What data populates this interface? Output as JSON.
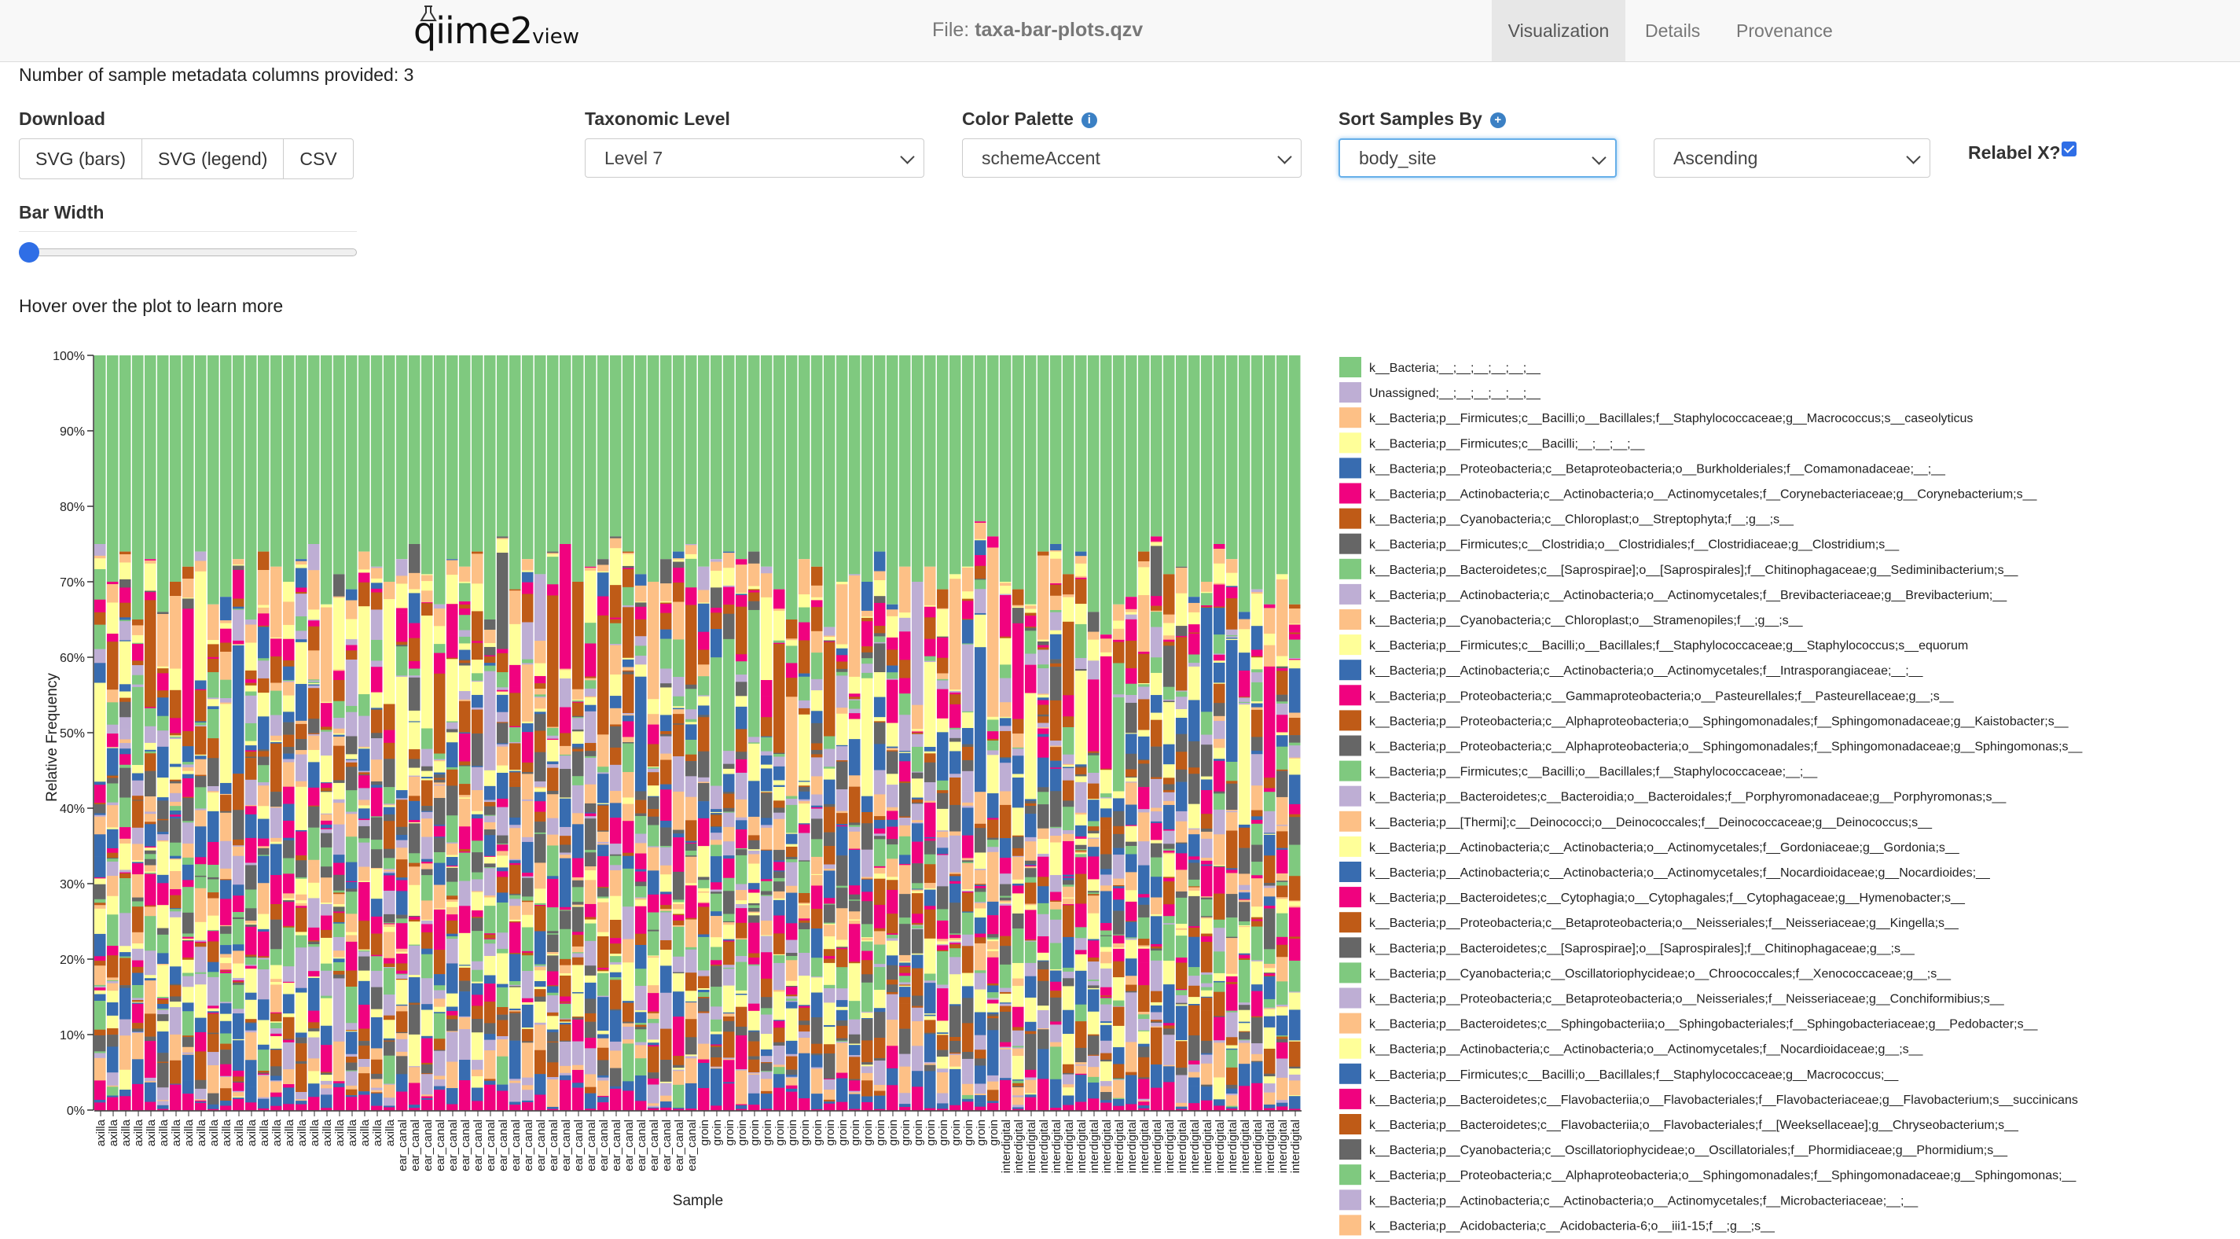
{
  "header": {
    "logo_text": "qiime2",
    "logo_sub": "view",
    "file_label": "File:",
    "file_name": "taxa-bar-plots.qzv",
    "tabs": [
      {
        "label": "Visualization",
        "active": true
      },
      {
        "label": "Details",
        "active": false
      },
      {
        "label": "Provenance",
        "active": false
      }
    ]
  },
  "info_line": "Number of sample metadata columns provided: 3",
  "controls": {
    "download_label": "Download",
    "download_buttons": [
      "SVG (bars)",
      "SVG (legend)",
      "CSV"
    ],
    "taxonomic_level_label": "Taxonomic Level",
    "taxonomic_level_value": "Level 7",
    "color_palette_label": "Color Palette",
    "color_palette_value": "schemeAccent",
    "sort_label": "Sort Samples By",
    "sort_value": "body_site",
    "sort_order_value": "Ascending",
    "relabel_label": "Relabel X?",
    "relabel_checked": true,
    "bar_width_label": "Bar Width",
    "bar_width_level": 0
  },
  "hover_note": "Hover over the plot to learn more",
  "colors": {
    "palette": [
      "#7fc97f",
      "#beaed4",
      "#fdc086",
      "#ffff99",
      "#386cb0",
      "#f0027f",
      "#bf5b17",
      "#666666"
    ],
    "accent_blue": "#2f6ee6"
  },
  "chart_data": {
    "type": "bar",
    "stacked": true,
    "title": "",
    "xlabel": "Sample",
    "ylabel": "Relative Frequency",
    "ylim": [
      0,
      100
    ],
    "y_ticks": [
      "0%",
      "10%",
      "20%",
      "30%",
      "40%",
      "50%",
      "60%",
      "70%",
      "80%",
      "90%",
      "100%"
    ],
    "grid": false,
    "legend_position": "right",
    "sample_groups": [
      {
        "label": "axilla",
        "count": 24
      },
      {
        "label": "ear_canal",
        "count": 24
      },
      {
        "label": "groin",
        "count": 24
      },
      {
        "label": "interdigital",
        "count": 24
      }
    ],
    "top_taxon_share_pct": [
      25,
      30,
      26,
      35,
      27,
      34,
      30,
      28,
      26,
      33,
      32,
      27,
      35,
      26,
      28,
      30,
      27,
      25,
      33,
      29,
      31,
      26,
      28,
      30,
      27,
      25,
      29,
      33,
      27,
      28,
      26,
      35,
      24,
      31,
      27,
      29,
      26,
      25,
      30,
      28,
      27,
      24,
      26,
      29,
      30,
      27,
      26,
      25,
      28,
      27,
      26,
      27,
      26,
      28,
      31,
      35,
      27,
      28,
      36,
      30,
      29,
      30,
      26,
      33,
      28,
      30,
      28,
      31,
      29,
      28,
      22,
      24,
      30,
      31,
      33,
      26,
      25,
      29,
      26,
      34,
      37,
      33,
      32,
      26,
      24,
      29,
      28,
      32,
      30,
      25,
      27,
      34,
      31,
      33,
      29,
      33
    ],
    "legend": [
      "k__Bacteria;__;__;__;__;__;__",
      "Unassigned;__;__;__;__;__;__",
      "k__Bacteria;p__Firmicutes;c__Bacilli;o__Bacillales;f__Staphylococcaceae;g__Macrococcus;s__caseolyticus",
      "k__Bacteria;p__Firmicutes;c__Bacilli;__;__;__;__",
      "k__Bacteria;p__Proteobacteria;c__Betaproteobacteria;o__Burkholderiales;f__Comamonadaceae;__;__",
      "k__Bacteria;p__Actinobacteria;c__Actinobacteria;o__Actinomycetales;f__Corynebacteriaceae;g__Corynebacterium;s__",
      "k__Bacteria;p__Cyanobacteria;c__Chloroplast;o__Streptophyta;f__;g__;s__",
      "k__Bacteria;p__Firmicutes;c__Clostridia;o__Clostridiales;f__Clostridiaceae;g__Clostridium;s__",
      "k__Bacteria;p__Bacteroidetes;c__[Saprospirae];o__[Saprospirales];f__Chitinophagaceae;g__Sediminibacterium;s__",
      "k__Bacteria;p__Actinobacteria;c__Actinobacteria;o__Actinomycetales;f__Brevibacteriaceae;g__Brevibacterium;__",
      "k__Bacteria;p__Cyanobacteria;c__Chloroplast;o__Stramenopiles;f__;g__;s__",
      "k__Bacteria;p__Firmicutes;c__Bacilli;o__Bacillales;f__Staphylococcaceae;g__Staphylococcus;s__equorum",
      "k__Bacteria;p__Actinobacteria;c__Actinobacteria;o__Actinomycetales;f__Intrasporangiaceae;__;__",
      "k__Bacteria;p__Proteobacteria;c__Gammaproteobacteria;o__Pasteurellales;f__Pasteurellaceae;g__;s__",
      "k__Bacteria;p__Proteobacteria;c__Alphaproteobacteria;o__Sphingomonadales;f__Sphingomonadaceae;g__Kaistobacter;s__",
      "k__Bacteria;p__Proteobacteria;c__Alphaproteobacteria;o__Sphingomonadales;f__Sphingomonadaceae;g__Sphingomonas;s__",
      "k__Bacteria;p__Firmicutes;c__Bacilli;o__Bacillales;f__Staphylococcaceae;__;__",
      "k__Bacteria;p__Bacteroidetes;c__Bacteroidia;o__Bacteroidales;f__Porphyromonadaceae;g__Porphyromonas;s__",
      "k__Bacteria;p__[Thermi];c__Deinococci;o__Deinococcales;f__Deinococcaceae;g__Deinococcus;s__",
      "k__Bacteria;p__Actinobacteria;c__Actinobacteria;o__Actinomycetales;f__Gordoniaceae;g__Gordonia;s__",
      "k__Bacteria;p__Actinobacteria;c__Actinobacteria;o__Actinomycetales;f__Nocardioidaceae;g__Nocardioides;__",
      "k__Bacteria;p__Bacteroidetes;c__Cytophagia;o__Cytophagales;f__Cytophagaceae;g__Hymenobacter;s__",
      "k__Bacteria;p__Proteobacteria;c__Betaproteobacteria;o__Neisseriales;f__Neisseriaceae;g__Kingella;s__",
      "k__Bacteria;p__Bacteroidetes;c__[Saprospirae];o__[Saprospirales];f__Chitinophagaceae;g__;s__",
      "k__Bacteria;p__Cyanobacteria;c__Oscillatoriophycideae;o__Chroococcales;f__Xenococcaceae;g__;s__",
      "k__Bacteria;p__Proteobacteria;c__Betaproteobacteria;o__Neisseriales;f__Neisseriaceae;g__Conchiformibius;s__",
      "k__Bacteria;p__Bacteroidetes;c__Sphingobacteriia;o__Sphingobacteriales;f__Sphingobacteriaceae;g__Pedobacter;s__",
      "k__Bacteria;p__Actinobacteria;c__Actinobacteria;o__Actinomycetales;f__Nocardioidaceae;g__;s__",
      "k__Bacteria;p__Firmicutes;c__Bacilli;o__Bacillales;f__Staphylococcaceae;g__Macrococcus;__",
      "k__Bacteria;p__Bacteroidetes;c__Flavobacteriia;o__Flavobacteriales;f__Flavobacteriaceae;g__Flavobacterium;s__succinicans",
      "k__Bacteria;p__Bacteroidetes;c__Flavobacteriia;o__Flavobacteriales;f__[Weeksellaceae];g__Chryseobacterium;s__",
      "k__Bacteria;p__Cyanobacteria;c__Oscillatoriophycideae;o__Oscillatoriales;f__Phormidiaceae;g__Phormidium;s__",
      "k__Bacteria;p__Proteobacteria;c__Alphaproteobacteria;o__Sphingomonadales;f__Sphingomonadaceae;g__Sphingomonas;__",
      "k__Bacteria;p__Actinobacteria;c__Actinobacteria;o__Actinomycetales;f__Microbacteriaceae;__;__",
      "k__Bacteria;p__Acidobacteria;c__Acidobacteria-6;o__iii1-15;f__;g__;s__"
    ]
  }
}
